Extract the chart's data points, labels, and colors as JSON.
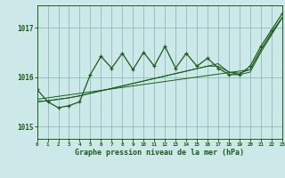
{
  "title": "Graphe pression niveau de la mer (hPa)",
  "bg_color": "#cce8e8",
  "grid_color": "#7ab8b8",
  "line_color": "#1a5c1a",
  "xlim": [
    0,
    23
  ],
  "ylim": [
    1014.75,
    1017.45
  ],
  "yticks": [
    1015,
    1016,
    1017
  ],
  "xticks": [
    0,
    1,
    2,
    3,
    4,
    5,
    6,
    7,
    8,
    9,
    10,
    11,
    12,
    13,
    14,
    15,
    16,
    17,
    18,
    19,
    20,
    21,
    22,
    23
  ],
  "series_linear1": [
    1015.55,
    1015.58,
    1015.61,
    1015.64,
    1015.67,
    1015.7,
    1015.73,
    1015.76,
    1015.79,
    1015.82,
    1015.85,
    1015.88,
    1015.91,
    1015.94,
    1015.97,
    1016.0,
    1016.03,
    1016.06,
    1016.09,
    1016.12,
    1016.15,
    1016.55,
    1016.9,
    1017.2
  ],
  "series_linear2": [
    1015.5,
    1015.52,
    1015.55,
    1015.58,
    1015.62,
    1015.67,
    1015.72,
    1015.77,
    1015.82,
    1015.87,
    1015.92,
    1015.97,
    1016.02,
    1016.07,
    1016.12,
    1016.17,
    1016.22,
    1016.27,
    1016.1,
    1016.05,
    1016.1,
    1016.5,
    1016.85,
    1017.2
  ],
  "series_linear3": [
    1015.5,
    1015.52,
    1015.55,
    1015.58,
    1015.62,
    1015.67,
    1015.72,
    1015.77,
    1015.82,
    1015.87,
    1015.92,
    1015.97,
    1016.02,
    1016.07,
    1016.12,
    1016.17,
    1016.22,
    1016.22,
    1016.1,
    1016.08,
    1016.15,
    1016.55,
    1016.88,
    1017.2
  ],
  "series_main": [
    1015.75,
    1015.5,
    1015.38,
    1015.42,
    1015.5,
    1016.05,
    1016.42,
    1016.18,
    1016.48,
    1016.15,
    1016.5,
    1016.22,
    1016.62,
    1016.18,
    1016.48,
    1016.22,
    1016.38,
    1016.18,
    1016.05,
    1016.05,
    1016.22,
    1016.62,
    1016.95,
    1017.28
  ]
}
